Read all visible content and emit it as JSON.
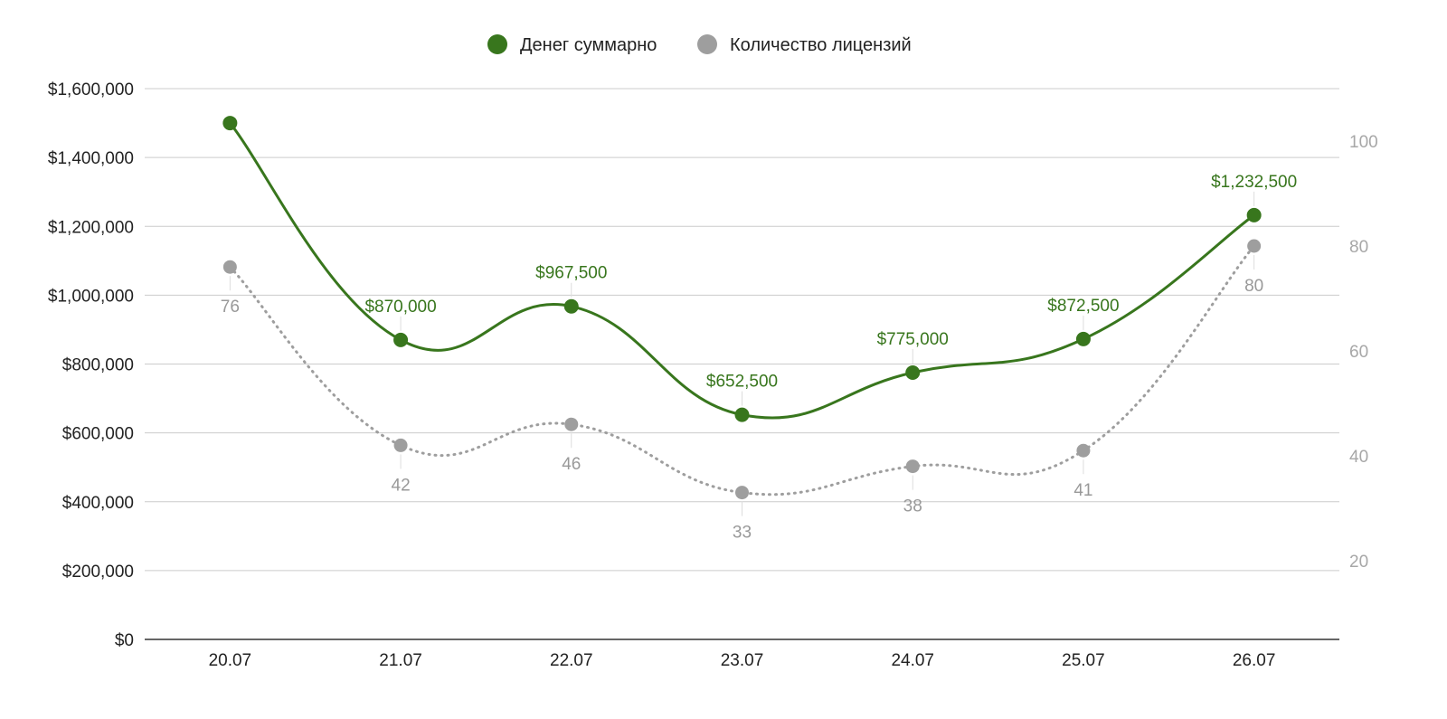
{
  "chart_data": {
    "type": "line",
    "title": "",
    "xlabel": "",
    "ylabel": "",
    "categories": [
      "20.07",
      "21.07",
      "22.07",
      "23.07",
      "24.07",
      "25.07",
      "26.07"
    ],
    "legend_position": "top-center",
    "grid": true,
    "series": [
      {
        "name": "Денег суммарно",
        "axis": "left",
        "color": "#38761d",
        "line_style": "solid-smooth",
        "values": [
          1500000,
          870000,
          967500,
          652500,
          775000,
          872500,
          1232500
        ],
        "data_labels": [
          null,
          "$870,000",
          "$967,500",
          "$652,500",
          "$775,000",
          "$872,500",
          "$1,232,500"
        ]
      },
      {
        "name": "Количество лицензий",
        "axis": "right",
        "color": "#9e9e9e",
        "line_style": "dotted-smooth",
        "values": [
          76,
          42,
          46,
          33,
          38,
          41,
          80
        ],
        "data_labels": [
          "76",
          "42",
          "46",
          "33",
          "38",
          "41",
          "80"
        ]
      }
    ],
    "y_left": {
      "min": 0,
      "max": 1600000,
      "ticks": [
        0,
        200000,
        400000,
        600000,
        800000,
        1000000,
        1200000,
        1400000,
        1600000
      ],
      "tick_labels": [
        "$0",
        "$200,000",
        "$400,000",
        "$600,000",
        "$800,000",
        "$1,000,000",
        "$1,200,000",
        "$1,400,000",
        "$1,600,000"
      ]
    },
    "y_right": {
      "min": 5,
      "max": 110,
      "ticks": [
        20,
        40,
        60,
        80,
        100
      ],
      "tick_labels": [
        "20",
        "40",
        "60",
        "80",
        "100"
      ],
      "color": "#a7a7a7"
    }
  }
}
